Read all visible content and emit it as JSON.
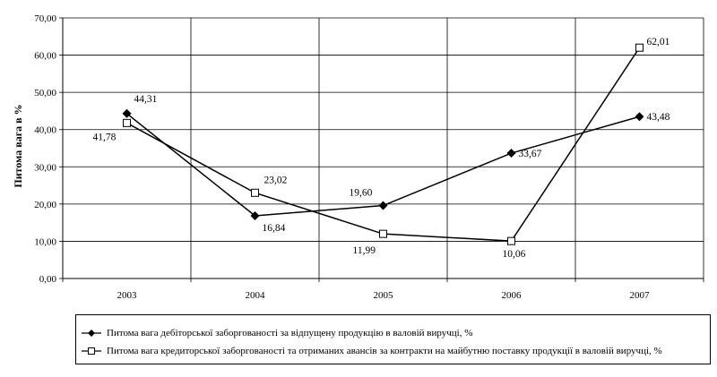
{
  "chart_data": {
    "type": "line",
    "categories": [
      "2003",
      "2004",
      "2005",
      "2006",
      "2007"
    ],
    "ylabel": "Питома вага в %",
    "ylim": [
      0,
      70
    ],
    "yticks": [
      "0,00",
      "10,00",
      "20,00",
      "30,00",
      "40,00",
      "50,00",
      "60,00",
      "70,00"
    ],
    "grid": true,
    "legend_position": "bottom",
    "series": [
      {
        "name": "Питома вага дебіторської заборгованості за відпущену продукцію в валовій виручці, %",
        "marker": "diamond-filled",
        "values": [
          44.31,
          16.84,
          19.6,
          33.67,
          43.48
        ],
        "labels": [
          "44,31",
          "16,84",
          "19,60",
          "33,67",
          "43,48"
        ]
      },
      {
        "name": "Питома вага кредиторської заборгованості та отриманих авансів за контракти на майбутню поставку продукції в валовій виручці, %",
        "marker": "square-open",
        "values": [
          41.78,
          23.02,
          11.99,
          10.06,
          62.01
        ],
        "labels": [
          "41,78",
          "23,02",
          "11,99",
          "10,06",
          "62,01"
        ]
      }
    ]
  }
}
